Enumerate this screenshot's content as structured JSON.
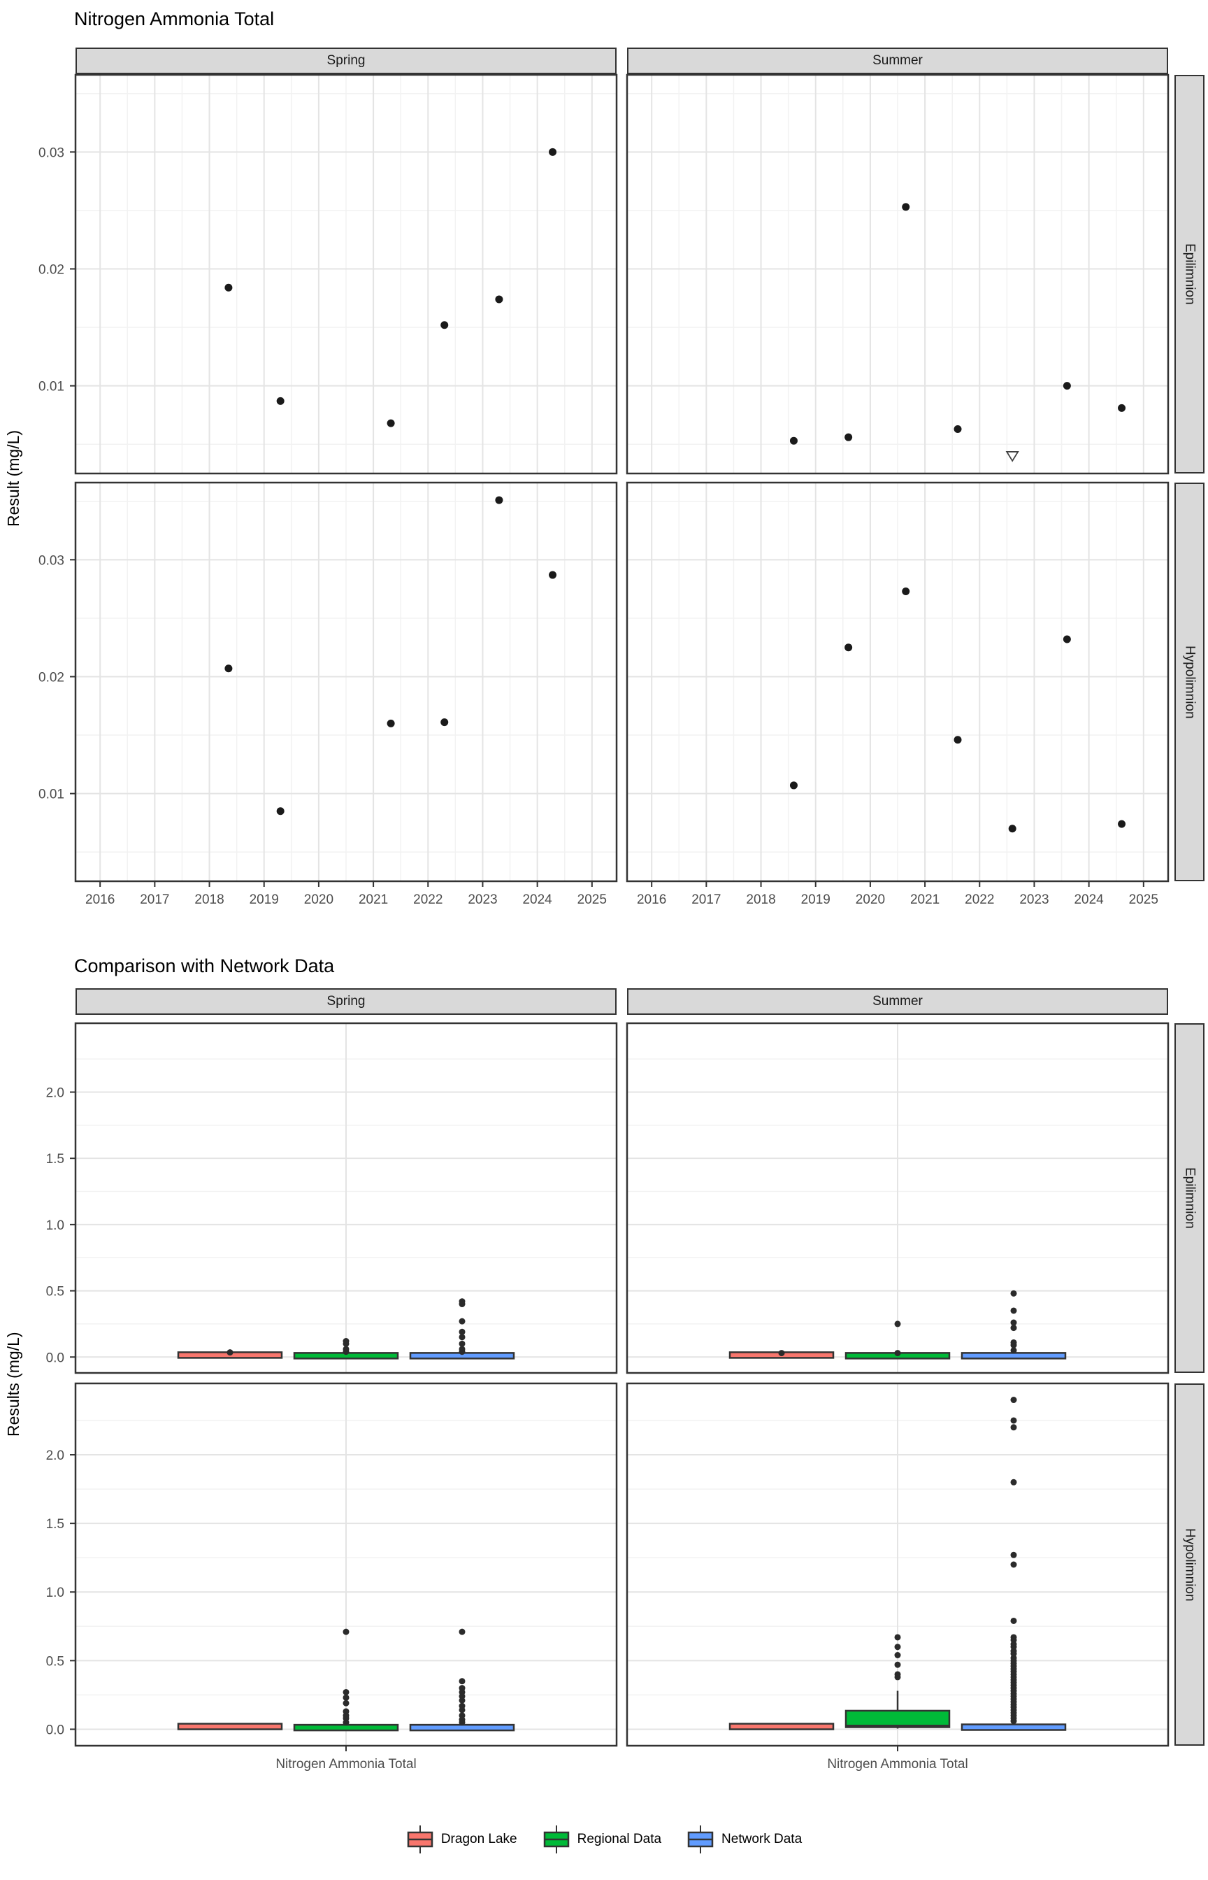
{
  "colors": {
    "dragon_lake": "#F8766D",
    "regional_data": "#00BA38",
    "network_data": "#619CFF",
    "strip_bg": "#D9D9D9",
    "panel_border": "#333333",
    "grid_major": "#E4E4E4",
    "grid_minor": "#F2F2F2",
    "point": "#1A1A1A",
    "axis_text": "#4D4D4D"
  },
  "chart_data": [
    {
      "type": "scatter",
      "title": "Nitrogen Ammonia Total",
      "ylabel": "Result (mg/L)",
      "xlabel": "",
      "col_facets": [
        "Spring",
        "Summer"
      ],
      "row_facets": [
        "Epilimnion",
        "Hypolimnion"
      ],
      "x_ticks": [
        "2016",
        "2017",
        "2018",
        "2019",
        "2020",
        "2021",
        "2022",
        "2023",
        "2024",
        "2025"
      ],
      "y_ticks": [
        "0.01",
        "0.02",
        "0.03"
      ],
      "xlim": [
        2015.55,
        2025.45
      ],
      "ylim": [
        0.0025,
        0.0366
      ],
      "grid": "major+minor",
      "panels": [
        {
          "col": "Spring",
          "row": "Epilimnion",
          "points": [
            [
              2018.35,
              0.0184
            ],
            [
              2019.3,
              0.0087
            ],
            [
              2021.32,
              0.0068
            ],
            [
              2022.3,
              0.0152
            ],
            [
              2023.3,
              0.0174
            ],
            [
              2024.28,
              0.03
            ]
          ]
        },
        {
          "col": "Summer",
          "row": "Epilimnion",
          "points": [
            [
              2018.6,
              0.0053
            ],
            [
              2019.6,
              0.0056
            ],
            [
              2020.65,
              0.0253
            ],
            [
              2021.6,
              0.0063
            ],
            [
              2023.6,
              0.01
            ],
            [
              2024.6,
              0.0081
            ]
          ],
          "nondetect_points": [
            [
              2022.6,
              0.004
            ]
          ]
        },
        {
          "col": "Spring",
          "row": "Hypolimnion",
          "points": [
            [
              2018.35,
              0.0207
            ],
            [
              2019.3,
              0.0085
            ],
            [
              2021.32,
              0.016
            ],
            [
              2022.3,
              0.0161
            ],
            [
              2023.3,
              0.0351
            ],
            [
              2024.28,
              0.0287
            ]
          ]
        },
        {
          "col": "Summer",
          "row": "Hypolimnion",
          "points": [
            [
              2018.6,
              0.0107
            ],
            [
              2019.6,
              0.0225
            ],
            [
              2020.65,
              0.0273
            ],
            [
              2021.6,
              0.0146
            ],
            [
              2022.6,
              0.007
            ],
            [
              2023.6,
              0.0232
            ],
            [
              2024.6,
              0.0074
            ]
          ]
        }
      ]
    },
    {
      "type": "boxplot",
      "title": "Comparison with Network Data",
      "ylabel": "Results (mg/L)",
      "x_category": "Nitrogen Ammonia Total",
      "col_facets": [
        "Spring",
        "Summer"
      ],
      "row_facets": [
        "Epilimnion",
        "Hypolimnion"
      ],
      "y_ticks": [
        "0.0",
        "0.5",
        "1.0",
        "1.5",
        "2.0"
      ],
      "ylim": [
        -0.12,
        2.52
      ],
      "series": [
        "Dragon Lake",
        "Regional Data",
        "Network Data"
      ],
      "legend_position": "bottom",
      "panels": [
        {
          "col": "Spring",
          "row": "Epilimnion",
          "boxes": [
            {
              "series": "Dragon Lake",
              "lo": 0.005,
              "q1": 0.01,
              "med": 0.015,
              "q3": 0.02,
              "hi": 0.025,
              "outliers": [
                0.035
              ]
            },
            {
              "series": "Regional Data",
              "lo": 0.002,
              "q1": 0.005,
              "med": 0.01,
              "q3": 0.015,
              "hi": 0.02,
              "outliers": [
                0.12,
                0.1,
                0.06,
                0.04
              ]
            },
            {
              "series": "Network Data",
              "lo": 0.002,
              "q1": 0.005,
              "med": 0.01,
              "q3": 0.015,
              "hi": 0.02,
              "outliers": [
                0.42,
                0.4,
                0.27,
                0.19,
                0.15,
                0.1,
                0.06,
                0.04
              ]
            }
          ]
        },
        {
          "col": "Summer",
          "row": "Epilimnion",
          "boxes": [
            {
              "series": "Dragon Lake",
              "lo": 0.005,
              "q1": 0.01,
              "med": 0.015,
              "q3": 0.02,
              "hi": 0.025,
              "outliers": [
                0.03
              ]
            },
            {
              "series": "Regional Data",
              "lo": 0.002,
              "q1": 0.005,
              "med": 0.01,
              "q3": 0.015,
              "hi": 0.02,
              "outliers": [
                0.25,
                0.03
              ]
            },
            {
              "series": "Network Data",
              "lo": 0.002,
              "q1": 0.005,
              "med": 0.01,
              "q3": 0.015,
              "hi": 0.02,
              "outliers": [
                0.48,
                0.35,
                0.26,
                0.22,
                0.11,
                0.09,
                0.05
              ]
            }
          ]
        },
        {
          "col": "Spring",
          "row": "Hypolimnion",
          "boxes": [
            {
              "series": "Dragon Lake",
              "lo": 0.01,
              "q1": 0.015,
              "med": 0.02,
              "q3": 0.025,
              "hi": 0.03,
              "outliers": []
            },
            {
              "series": "Regional Data",
              "lo": 0.002,
              "q1": 0.005,
              "med": 0.012,
              "q3": 0.02,
              "hi": 0.028,
              "outliers": [
                0.71,
                0.27,
                0.23,
                0.19,
                0.13,
                0.1,
                0.08,
                0.05
              ]
            },
            {
              "series": "Network Data",
              "lo": 0.002,
              "q1": 0.005,
              "med": 0.012,
              "q3": 0.02,
              "hi": 0.028,
              "outliers": [
                0.71,
                0.35,
                0.3,
                0.27,
                0.24,
                0.21,
                0.17,
                0.14,
                0.1,
                0.07,
                0.05
              ]
            }
          ]
        },
        {
          "col": "Summer",
          "row": "Hypolimnion",
          "boxes": [
            {
              "series": "Dragon Lake",
              "lo": 0.01,
              "q1": 0.015,
              "med": 0.02,
              "q3": 0.025,
              "hi": 0.03,
              "outliers": []
            },
            {
              "series": "Regional Data",
              "lo": 0.005,
              "q1": 0.015,
              "med": 0.025,
              "q3": 0.135,
              "hi": 0.28,
              "outliers": [
                0.67,
                0.6,
                0.54,
                0.47,
                0.4,
                0.38
              ]
            },
            {
              "series": "Network Data",
              "lo": 0.0,
              "q1": 0.005,
              "med": 0.015,
              "q3": 0.03,
              "hi": 0.045,
              "outliers": [
                2.4,
                2.25,
                2.2,
                1.8,
                1.27,
                1.2,
                0.79,
                0.67,
                0.65,
                0.62,
                0.6,
                0.57,
                0.55,
                0.52,
                0.5,
                0.48,
                0.46,
                0.44,
                0.42,
                0.4,
                0.38,
                0.36,
                0.34,
                0.32,
                0.3,
                0.28,
                0.26,
                0.24,
                0.22,
                0.2,
                0.18,
                0.16,
                0.14,
                0.12,
                0.1,
                0.08,
                0.06
              ]
            }
          ]
        }
      ]
    }
  ],
  "legend": {
    "items": [
      {
        "label": "Dragon Lake",
        "color": "#F8766D"
      },
      {
        "label": "Regional Data",
        "color": "#00BA38"
      },
      {
        "label": "Network Data",
        "color": "#619CFF"
      }
    ]
  }
}
